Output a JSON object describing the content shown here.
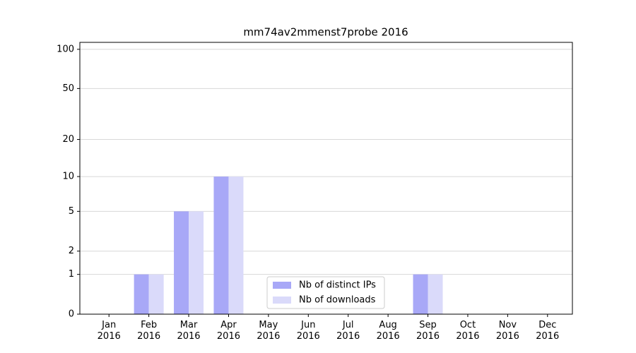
{
  "chart_data": {
    "type": "bar",
    "title": "mm74av2mmenst7probe 2016",
    "categories": [
      "Jan 2016",
      "Feb 2016",
      "Mar 2016",
      "Apr 2016",
      "May 2016",
      "Jun 2016",
      "Jul 2016",
      "Aug 2016",
      "Sep 2016",
      "Oct 2016",
      "Nov 2016",
      "Dec 2016"
    ],
    "series": [
      {
        "name": "Nb of distinct IPs",
        "color": "#a8a8f7",
        "values": [
          0,
          1,
          5,
          10,
          0,
          0,
          0,
          0,
          1,
          0,
          0,
          0
        ]
      },
      {
        "name": "Nb of downloads",
        "color": "#dadafa",
        "values": [
          0,
          1,
          5,
          10,
          0,
          0,
          0,
          0,
          1,
          0,
          0,
          0
        ]
      }
    ],
    "yscale": "log1p",
    "ylim": [
      0,
      113
    ],
    "yticks": [
      0,
      1,
      2,
      5,
      10,
      20,
      50,
      100
    ],
    "grid": true,
    "legend": "lower center"
  }
}
